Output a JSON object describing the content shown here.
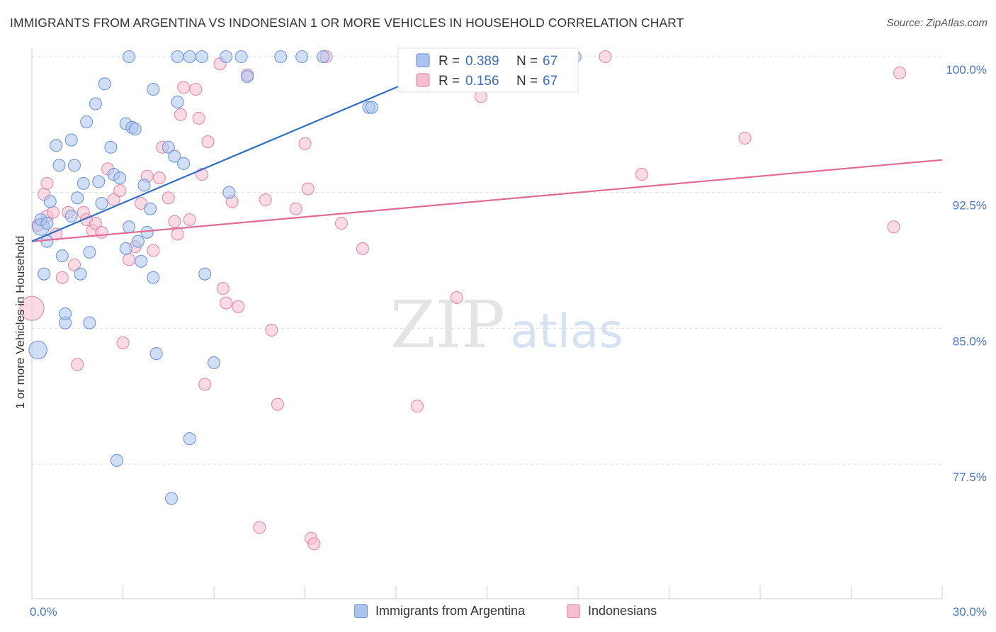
{
  "title": "IMMIGRANTS FROM ARGENTINA VS INDONESIAN 1 OR MORE VEHICLES IN HOUSEHOLD CORRELATION CHART",
  "source": "Source: ZipAtlas.com",
  "watermark": {
    "zip": "ZIP",
    "atlas": "atlas"
  },
  "colors": {
    "blue_fill": "#a9c4ee",
    "blue_stroke": "#6f97d8",
    "blue_line": "#2f6fc9",
    "pink_fill": "#f5bdd0",
    "pink_stroke": "#e58aab",
    "pink_line": "#e06b97",
    "tick_text": "#4a78c8",
    "grid": "#dddddd"
  },
  "legend_box": {
    "rows": [
      {
        "series": "blue",
        "r_label": "R =",
        "r_value": "0.389",
        "n_label": "N =",
        "n_value": "67"
      },
      {
        "series": "pink",
        "r_label": "R =",
        "r_value": "0.156",
        "n_label": "N =",
        "n_value": "67"
      }
    ]
  },
  "bottom_legend": [
    {
      "series": "blue",
      "label": "Immigrants from Argentina"
    },
    {
      "series": "pink",
      "label": "Indonesians"
    }
  ],
  "chart_data": {
    "type": "scatter",
    "title": "IMMIGRANTS FROM ARGENTINA VS INDONESIAN 1 OR MORE VEHICLES IN HOUSEHOLD CORRELATION CHART",
    "xlabel": "",
    "ylabel": "1 or more Vehicles in Household",
    "xlim": [
      0,
      30
    ],
    "ylim": [
      71,
      101
    ],
    "x_tick_labels": [
      "0.0%",
      "30.0%"
    ],
    "y_ticks": [
      77.5,
      85.0,
      92.5,
      100.0
    ],
    "y_tick_labels": [
      "77.5%",
      "85.0%",
      "92.5%",
      "100.0%"
    ],
    "grid": true,
    "legend_position": "top-center",
    "series": [
      {
        "name": "Immigrants from Argentina",
        "color": "blue",
        "trend": {
          "x": [
            0.0,
            14.4
          ],
          "y": [
            89.8,
            100.0
          ]
        },
        "points": [
          [
            0.2,
            83.8,
            1.5
          ],
          [
            0.3,
            90.6,
            1.4
          ],
          [
            0.3,
            91.0,
            1.0
          ],
          [
            0.4,
            88.0,
            1.0
          ],
          [
            0.5,
            90.8,
            1.0
          ],
          [
            0.5,
            89.8,
            1.0
          ],
          [
            0.6,
            92.0,
            1.0
          ],
          [
            0.8,
            95.1,
            1.0
          ],
          [
            0.9,
            94.0,
            1.0
          ],
          [
            1.0,
            89.0,
            1.0
          ],
          [
            1.1,
            85.3,
            1.0
          ],
          [
            1.1,
            85.8,
            1.0
          ],
          [
            1.3,
            91.2,
            1.0
          ],
          [
            1.3,
            95.4,
            1.0
          ],
          [
            1.4,
            94.0,
            1.0
          ],
          [
            1.5,
            92.2,
            1.0
          ],
          [
            1.6,
            88.0,
            1.0
          ],
          [
            1.7,
            93.0,
            1.0
          ],
          [
            1.8,
            96.4,
            1.0
          ],
          [
            1.9,
            89.2,
            1.0
          ],
          [
            1.9,
            85.3,
            1.0
          ],
          [
            2.1,
            97.4,
            1.0
          ],
          [
            2.2,
            93.1,
            1.0
          ],
          [
            2.3,
            91.9,
            1.0
          ],
          [
            2.4,
            98.5,
            1.0
          ],
          [
            2.6,
            95.0,
            1.0
          ],
          [
            2.7,
            93.5,
            1.0
          ],
          [
            2.8,
            77.7,
            1.0
          ],
          [
            2.9,
            93.3,
            1.0
          ],
          [
            3.1,
            96.3,
            1.0
          ],
          [
            3.1,
            89.4,
            1.0
          ],
          [
            3.2,
            90.6,
            1.0
          ],
          [
            3.2,
            100.0,
            1.0
          ],
          [
            3.3,
            96.1,
            1.0
          ],
          [
            3.4,
            96.0,
            1.0
          ],
          [
            3.5,
            89.8,
            1.0
          ],
          [
            3.6,
            88.7,
            1.0
          ],
          [
            3.7,
            92.9,
            1.0
          ],
          [
            3.8,
            90.3,
            1.0
          ],
          [
            3.9,
            91.6,
            1.0
          ],
          [
            4.0,
            98.2,
            1.0
          ],
          [
            4.1,
            83.6,
            1.0
          ],
          [
            4.0,
            87.8,
            1.0
          ],
          [
            4.5,
            95.0,
            1.0
          ],
          [
            4.6,
            75.6,
            1.0
          ],
          [
            4.7,
            94.5,
            1.0
          ],
          [
            4.8,
            97.5,
            1.0
          ],
          [
            4.8,
            100.0,
            1.0
          ],
          [
            5.0,
            94.1,
            1.0
          ],
          [
            5.2,
            100.0,
            1.0
          ],
          [
            5.2,
            78.9,
            1.0
          ],
          [
            5.6,
            100.0,
            1.0
          ],
          [
            5.7,
            88.0,
            1.0
          ],
          [
            6.0,
            83.1,
            1.0
          ],
          [
            6.4,
            100.0,
            1.0
          ],
          [
            6.5,
            92.5,
            1.0
          ],
          [
            6.9,
            100.0,
            1.0
          ],
          [
            7.1,
            98.9,
            1.0
          ],
          [
            8.2,
            100.0,
            1.0
          ],
          [
            8.9,
            100.0,
            1.0
          ],
          [
            9.6,
            100.0,
            1.0
          ],
          [
            11.1,
            97.2,
            1.0
          ],
          [
            11.2,
            97.2,
            1.0
          ],
          [
            17.9,
            100.0,
            1.0
          ]
        ]
      },
      {
        "name": "Indonesians",
        "color": "pink",
        "trend": {
          "x": [
            0.0,
            30.0
          ],
          "y": [
            89.8,
            94.3
          ]
        },
        "points": [
          [
            0.0,
            86.1,
            2.0
          ],
          [
            0.2,
            90.7,
            1.0
          ],
          [
            0.4,
            92.4,
            1.0
          ],
          [
            0.5,
            91.2,
            1.0
          ],
          [
            0.5,
            93.0,
            1.0
          ],
          [
            0.7,
            91.4,
            1.0
          ],
          [
            0.8,
            90.2,
            1.0
          ],
          [
            1.0,
            87.8,
            1.0
          ],
          [
            1.2,
            91.4,
            1.0
          ],
          [
            1.4,
            88.5,
            1.0
          ],
          [
            1.5,
            83.0,
            1.0
          ],
          [
            1.7,
            91.4,
            1.0
          ],
          [
            1.8,
            91.0,
            1.0
          ],
          [
            2.0,
            90.4,
            1.0
          ],
          [
            2.1,
            90.8,
            1.0
          ],
          [
            2.3,
            90.3,
            1.0
          ],
          [
            2.5,
            93.8,
            1.0
          ],
          [
            2.7,
            92.1,
            1.0
          ],
          [
            2.9,
            92.6,
            1.0
          ],
          [
            3.0,
            84.2,
            1.0
          ],
          [
            3.2,
            88.8,
            1.0
          ],
          [
            3.4,
            89.5,
            1.0
          ],
          [
            3.6,
            91.9,
            1.0
          ],
          [
            3.8,
            93.4,
            1.0
          ],
          [
            4.0,
            89.3,
            1.0
          ],
          [
            4.2,
            93.3,
            1.0
          ],
          [
            4.3,
            95.0,
            1.0
          ],
          [
            4.5,
            92.2,
            1.0
          ],
          [
            4.7,
            90.9,
            1.0
          ],
          [
            4.8,
            90.2,
            1.0
          ],
          [
            4.9,
            96.8,
            1.0
          ],
          [
            5.0,
            98.3,
            1.0
          ],
          [
            5.2,
            91.0,
            1.0
          ],
          [
            5.4,
            98.2,
            1.0
          ],
          [
            5.5,
            96.6,
            1.0
          ],
          [
            5.6,
            93.5,
            1.0
          ],
          [
            5.7,
            81.9,
            1.0
          ],
          [
            5.8,
            95.3,
            1.0
          ],
          [
            6.2,
            99.6,
            1.0
          ],
          [
            6.3,
            87.2,
            1.0
          ],
          [
            6.4,
            86.4,
            1.0
          ],
          [
            6.6,
            92.0,
            1.0
          ],
          [
            6.8,
            86.2,
            1.0
          ],
          [
            7.1,
            99.0,
            1.0
          ],
          [
            7.5,
            74.0,
            1.0
          ],
          [
            7.7,
            92.1,
            1.0
          ],
          [
            7.9,
            84.9,
            1.0
          ],
          [
            8.1,
            80.8,
            1.0
          ],
          [
            8.7,
            91.6,
            1.0
          ],
          [
            9.0,
            95.2,
            1.0
          ],
          [
            9.1,
            92.7,
            1.0
          ],
          [
            9.2,
            73.4,
            1.0
          ],
          [
            9.3,
            73.1,
            1.0
          ],
          [
            9.7,
            100.0,
            1.0
          ],
          [
            10.2,
            90.8,
            1.0
          ],
          [
            10.9,
            89.4,
            1.0
          ],
          [
            12.7,
            80.7,
            1.0
          ],
          [
            14.0,
            86.7,
            1.0
          ],
          [
            14.8,
            97.8,
            1.0
          ],
          [
            18.9,
            100.0,
            1.0
          ],
          [
            20.1,
            93.5,
            1.0
          ],
          [
            23.5,
            95.5,
            1.0
          ],
          [
            28.4,
            90.6,
            1.0
          ],
          [
            28.6,
            99.1,
            1.0
          ]
        ]
      }
    ]
  }
}
